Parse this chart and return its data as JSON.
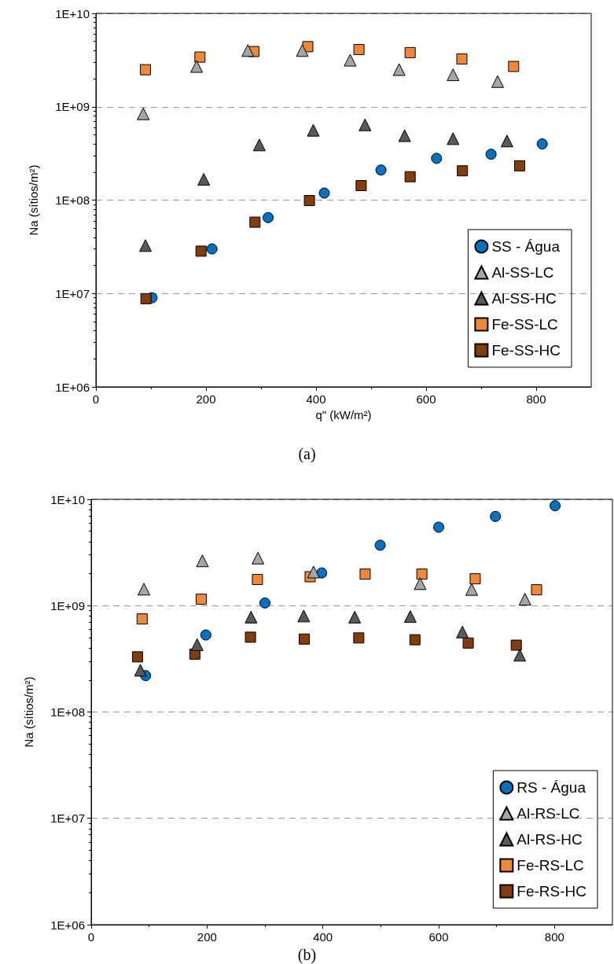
{
  "chart_data": [
    {
      "type": "scatter",
      "xlabel": "q\" (kW/m²)",
      "ylabel": "Na (sítios/m²)",
      "log": "y",
      "grid": "y",
      "legend": "bottom right",
      "xlim": [
        0,
        900
      ],
      "xticks": [
        0,
        200,
        400,
        600,
        800
      ],
      "ylim": [
        1000000,
        10000000000
      ],
      "yticks": [
        {
          "value": 1000000,
          "label": "1E+06"
        },
        {
          "value": 10000000,
          "label": "1E+07"
        },
        {
          "value": 100000000,
          "label": "1E+08"
        },
        {
          "value": 1000000000,
          "label": "1E+09"
        },
        {
          "value": 10000000000,
          "label": "1E+10"
        }
      ],
      "annotations": [
        "(a)"
      ],
      "series": [
        {
          "name": "SS - Água",
          "color": "#0070c0",
          "marker": "circle",
          "x": [
            102,
            211,
            313,
            415,
            518,
            619,
            718,
            811
          ],
          "values": [
            9000000,
            30000000,
            65000000,
            119000000,
            210000000,
            280000000,
            310000000,
            400000000
          ]
        },
        {
          "name": "Al-SS-LC",
          "color": "#a6a6a6",
          "marker": "triangle",
          "x": [
            86,
            183,
            276,
            375,
            462,
            551,
            649,
            730
          ],
          "values": [
            840000000,
            2700000000,
            4000000000,
            4000000000,
            3150000000,
            2500000000,
            2200000000,
            1860000000
          ]
        },
        {
          "name": "Al-SS-HC",
          "color": "#595959",
          "marker": "triangle",
          "x": [
            90,
            196,
            297,
            395,
            489,
            561,
            649,
            747
          ],
          "values": [
            32600000,
            167000000,
            390000000,
            560000000,
            640000000,
            490000000,
            455000000,
            430000000
          ]
        },
        {
          "name": "Fe-SS-LC",
          "color": "#f0883a",
          "marker": "square",
          "x": [
            90,
            189,
            287,
            385,
            478,
            571,
            665,
            759
          ],
          "values": [
            2490000000,
            3400000000,
            3900000000,
            4400000000,
            4100000000,
            3800000000,
            3250000000,
            2700000000
          ]
        },
        {
          "name": "Fe-SS-HC",
          "color": "#843c0c",
          "marker": "square",
          "x": [
            91,
            191,
            289,
            388,
            482,
            571,
            666,
            770
          ],
          "values": [
            8800000,
            28400000,
            58000000,
            99000000,
            143000000,
            178000000,
            206000000,
            233000000
          ]
        }
      ]
    },
    {
      "type": "scatter",
      "ylabel": "Na (sítios/m²)",
      "log": "y",
      "grid": "y",
      "legend": "bottom right",
      "xlim": [
        0,
        900
      ],
      "xticks": [
        0,
        200,
        400,
        600,
        800
      ],
      "ylim": [
        1000000,
        10000000000
      ],
      "yticks": [
        {
          "value": 1000000,
          "label": "1E+06"
        },
        {
          "value": 10000000,
          "label": "1E+07"
        },
        {
          "value": 100000000,
          "label": "1E+08"
        },
        {
          "value": 1000000000,
          "label": "1E+09"
        },
        {
          "value": 10000000000,
          "label": "1E+10"
        }
      ],
      "annotations": [
        "(b)"
      ],
      "series": [
        {
          "name": "RS - Água",
          "color": "#0070c0",
          "marker": "circle",
          "x": [
            94,
            198,
            300,
            398,
            499,
            600,
            698,
            801
          ],
          "values": [
            220000000,
            530000000,
            1060000000,
            2030000000,
            3700000000,
            5470000000,
            6900000000,
            8700000000
          ]
        },
        {
          "name": "Al-RS-LC",
          "color": "#a6a6a6",
          "marker": "triangle",
          "x": [
            91,
            192,
            288,
            384,
            473,
            568,
            657,
            749
          ],
          "values": [
            1430000000,
            2640000000,
            2800000000,
            2070000000,
            null,
            1610000000,
            1420000000,
            1150000000
          ]
        },
        {
          "name": "Al-RS-HC",
          "color": "#595959",
          "marker": "triangle",
          "x": [
            85,
            183,
            276,
            367,
            455,
            551,
            641,
            740
          ],
          "values": [
            247000000,
            430000000,
            780000000,
            800000000,
            780000000,
            790000000,
            565000000,
            342000000
          ]
        },
        {
          "name": "Fe-RS-LC",
          "color": "#f0883a",
          "marker": "square",
          "x": [
            88,
            190,
            287,
            378,
            473,
            571,
            663,
            769
          ],
          "values": [
            750000000,
            1150000000,
            1760000000,
            1870000000,
            1980000000,
            1980000000,
            1790000000,
            1410000000
          ]
        },
        {
          "name": "Fe-RS-HC",
          "color": "#843c0c",
          "marker": "square",
          "x": [
            80,
            179,
            275,
            368,
            462,
            559,
            651,
            734
          ],
          "values": [
            330000000,
            350000000,
            505000000,
            485000000,
            497000000,
            478000000,
            445000000,
            425000000
          ]
        }
      ]
    }
  ]
}
